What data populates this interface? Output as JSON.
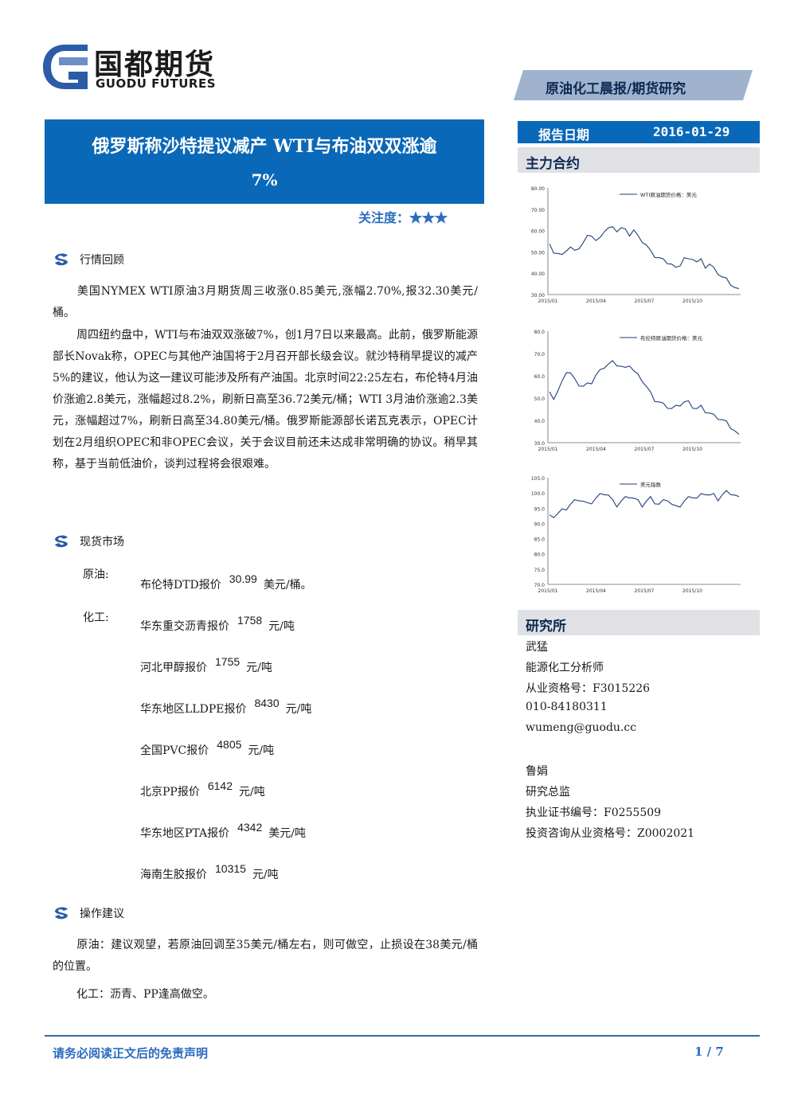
{
  "brand": {
    "name_cn": "国都期货",
    "name_en": "GUODU FUTURES",
    "colors": {
      "blue": "#0a68b8",
      "navy": "#0e2a52",
      "accent_text": "#2b6cc0",
      "grey_bar": "#dfe1e5"
    }
  },
  "header": {
    "report_type": "原油化工晨报/期货研究"
  },
  "title": {
    "line1": "俄罗斯称沙特提议减产 WTI与布油双双涨逾",
    "line2": "7%"
  },
  "attention": {
    "label": "关注度：★★★",
    "stars": 3
  },
  "sections": {
    "review": {
      "title": "行情回顾",
      "icon": "swirl-bullet-icon",
      "paragraphs": [
        "美国NYMEX WTI原油3月期货周三收涨0.85美元,涨幅2.70%,报32.30美元/桶。",
        "周四纽约盘中，WTI与布油双双涨破7%，创1月7日以来最高。此前，俄罗斯能源部长Novak称，OPEC与其他产油国将于2月召开部长级会议。就沙特稍早提议的减产5%的建议，他认为这一建议可能涉及所有产油国。北京时间22:25左右，布伦特4月油价涨逾2.8美元，涨幅超过8.2%，刷新日高至36.72美元/桶；WTI 3月油价涨逾2.3美元，涨幅超过7%，刷新日高至34.80美元/桶。俄罗斯能源部长诺瓦克表示，OPEC计划在2月组织OPEC和非OPEC会议，关于会议目前还未达成非常明确的协议。稍早其称，基于当前低油价，谈判过程将会很艰难。"
      ]
    },
    "spot": {
      "title": "现货市场",
      "crude_label": "原油:",
      "chem_label": "化工:",
      "items": [
        {
          "name": "布伦特DTD报价",
          "value": "30.99",
          "unit": "美元/桶。"
        },
        {
          "name": "华东重交沥青报价",
          "value": "1758",
          "unit": "元/吨"
        },
        {
          "name": "河北甲醇报价",
          "value": "1755",
          "unit": "元/吨"
        },
        {
          "name": "华东地区LLDPE报价",
          "value": "8430",
          "unit": "元/吨"
        },
        {
          "name": "全国PVC报价",
          "value": "4805",
          "unit": "元/吨"
        },
        {
          "name": "北京PP报价",
          "value": "6142",
          "unit": "元/吨"
        },
        {
          "name": "华东地区PTA报价",
          "value": "4342",
          "unit": "美元/吨"
        },
        {
          "name": "海南生胶报价",
          "value": "10315",
          "unit": "元/吨"
        }
      ]
    },
    "advice": {
      "title": "操作建议",
      "crude": "原油：建议观望，若原油回调至35美元/桶左右，则可做空，止损设在38美元/桶的位置。",
      "chem": "化工：沥青、PP逢高做空。"
    }
  },
  "sidebar": {
    "date_label": "报告日期",
    "date_value": "2016-01-29",
    "main_contract_label": "主力合约",
    "research_label": "研究所",
    "analysts": [
      {
        "name": "武猛",
        "title": "能源化工分析师",
        "cert": "从业资格号：F3015226",
        "phone": "010-84180311",
        "email": "wumeng@guodu.cc"
      },
      {
        "name": "鲁娟",
        "title": "研究总监",
        "cert": "执业证书编号：F0255509",
        "cert2": "投资咨询从业资格号：Z0002021"
      }
    ]
  },
  "chart_data": [
    {
      "type": "line",
      "series": [
        {
          "name": "WTI原油期货价格：美元",
          "values": [
            53,
            50,
            49,
            48,
            51,
            52,
            50,
            52,
            54,
            57,
            58,
            55,
            56,
            60,
            61,
            61,
            60,
            61,
            60,
            58,
            60,
            57,
            55,
            53,
            50,
            48,
            47,
            46,
            45,
            44,
            42,
            44,
            47,
            46,
            47,
            45,
            46,
            43,
            44,
            42,
            40,
            38,
            37,
            35,
            33,
            32
          ]
        }
      ],
      "yticks": [
        "80.00",
        "70.00",
        "60.00",
        "50.00",
        "40.00",
        "30.00"
      ],
      "xticks": [
        "2015/01",
        "2015/04",
        "2015/07",
        "2015/10"
      ],
      "ylim": [
        30,
        80
      ]
    },
    {
      "type": "line",
      "series": [
        {
          "name": "布伦特原油期货价格：美元",
          "values": [
            52,
            50,
            53,
            57,
            62,
            61,
            58,
            56,
            55,
            56,
            57,
            60,
            62,
            64,
            65,
            66,
            65,
            64,
            63,
            65,
            62,
            60,
            58,
            55,
            52,
            49,
            48,
            47,
            46,
            45,
            46,
            47,
            48,
            48,
            46,
            45,
            46,
            44,
            43,
            42,
            41,
            40,
            39,
            37,
            35,
            33
          ]
        }
      ],
      "yticks": [
        "80.0",
        "70.0",
        "60.0",
        "50.0",
        "40.0",
        "30.0"
      ],
      "xticks": [
        "2015/01",
        "2015/04",
        "2015/07",
        "2015/10"
      ],
      "ylim": [
        30,
        80
      ]
    },
    {
      "type": "line",
      "series": [
        {
          "name": "美元指数",
          "values": [
            92,
            92.5,
            93,
            94,
            95,
            96,
            97,
            98,
            97,
            96,
            97,
            98,
            99,
            100,
            99,
            97,
            96,
            97,
            98,
            99,
            98,
            97,
            96,
            97,
            98,
            97,
            96,
            97,
            98,
            96,
            95,
            96,
            97,
            98,
            99,
            98,
            99,
            100,
            99,
            99,
            98,
            99,
            100,
            100,
            99,
            98
          ]
        }
      ],
      "yticks": [
        "105.0",
        "100.0",
        "95.0",
        "90.0",
        "85.0",
        "80.0",
        "75.0",
        "70.0"
      ],
      "xticks": [
        "2015/01",
        "2015/04",
        "2015/07",
        "2015/10"
      ],
      "ylim": [
        70,
        105
      ]
    }
  ],
  "footer": {
    "disclaimer": "请务必阅读正文后的免责声明",
    "page": "1 / 7"
  }
}
